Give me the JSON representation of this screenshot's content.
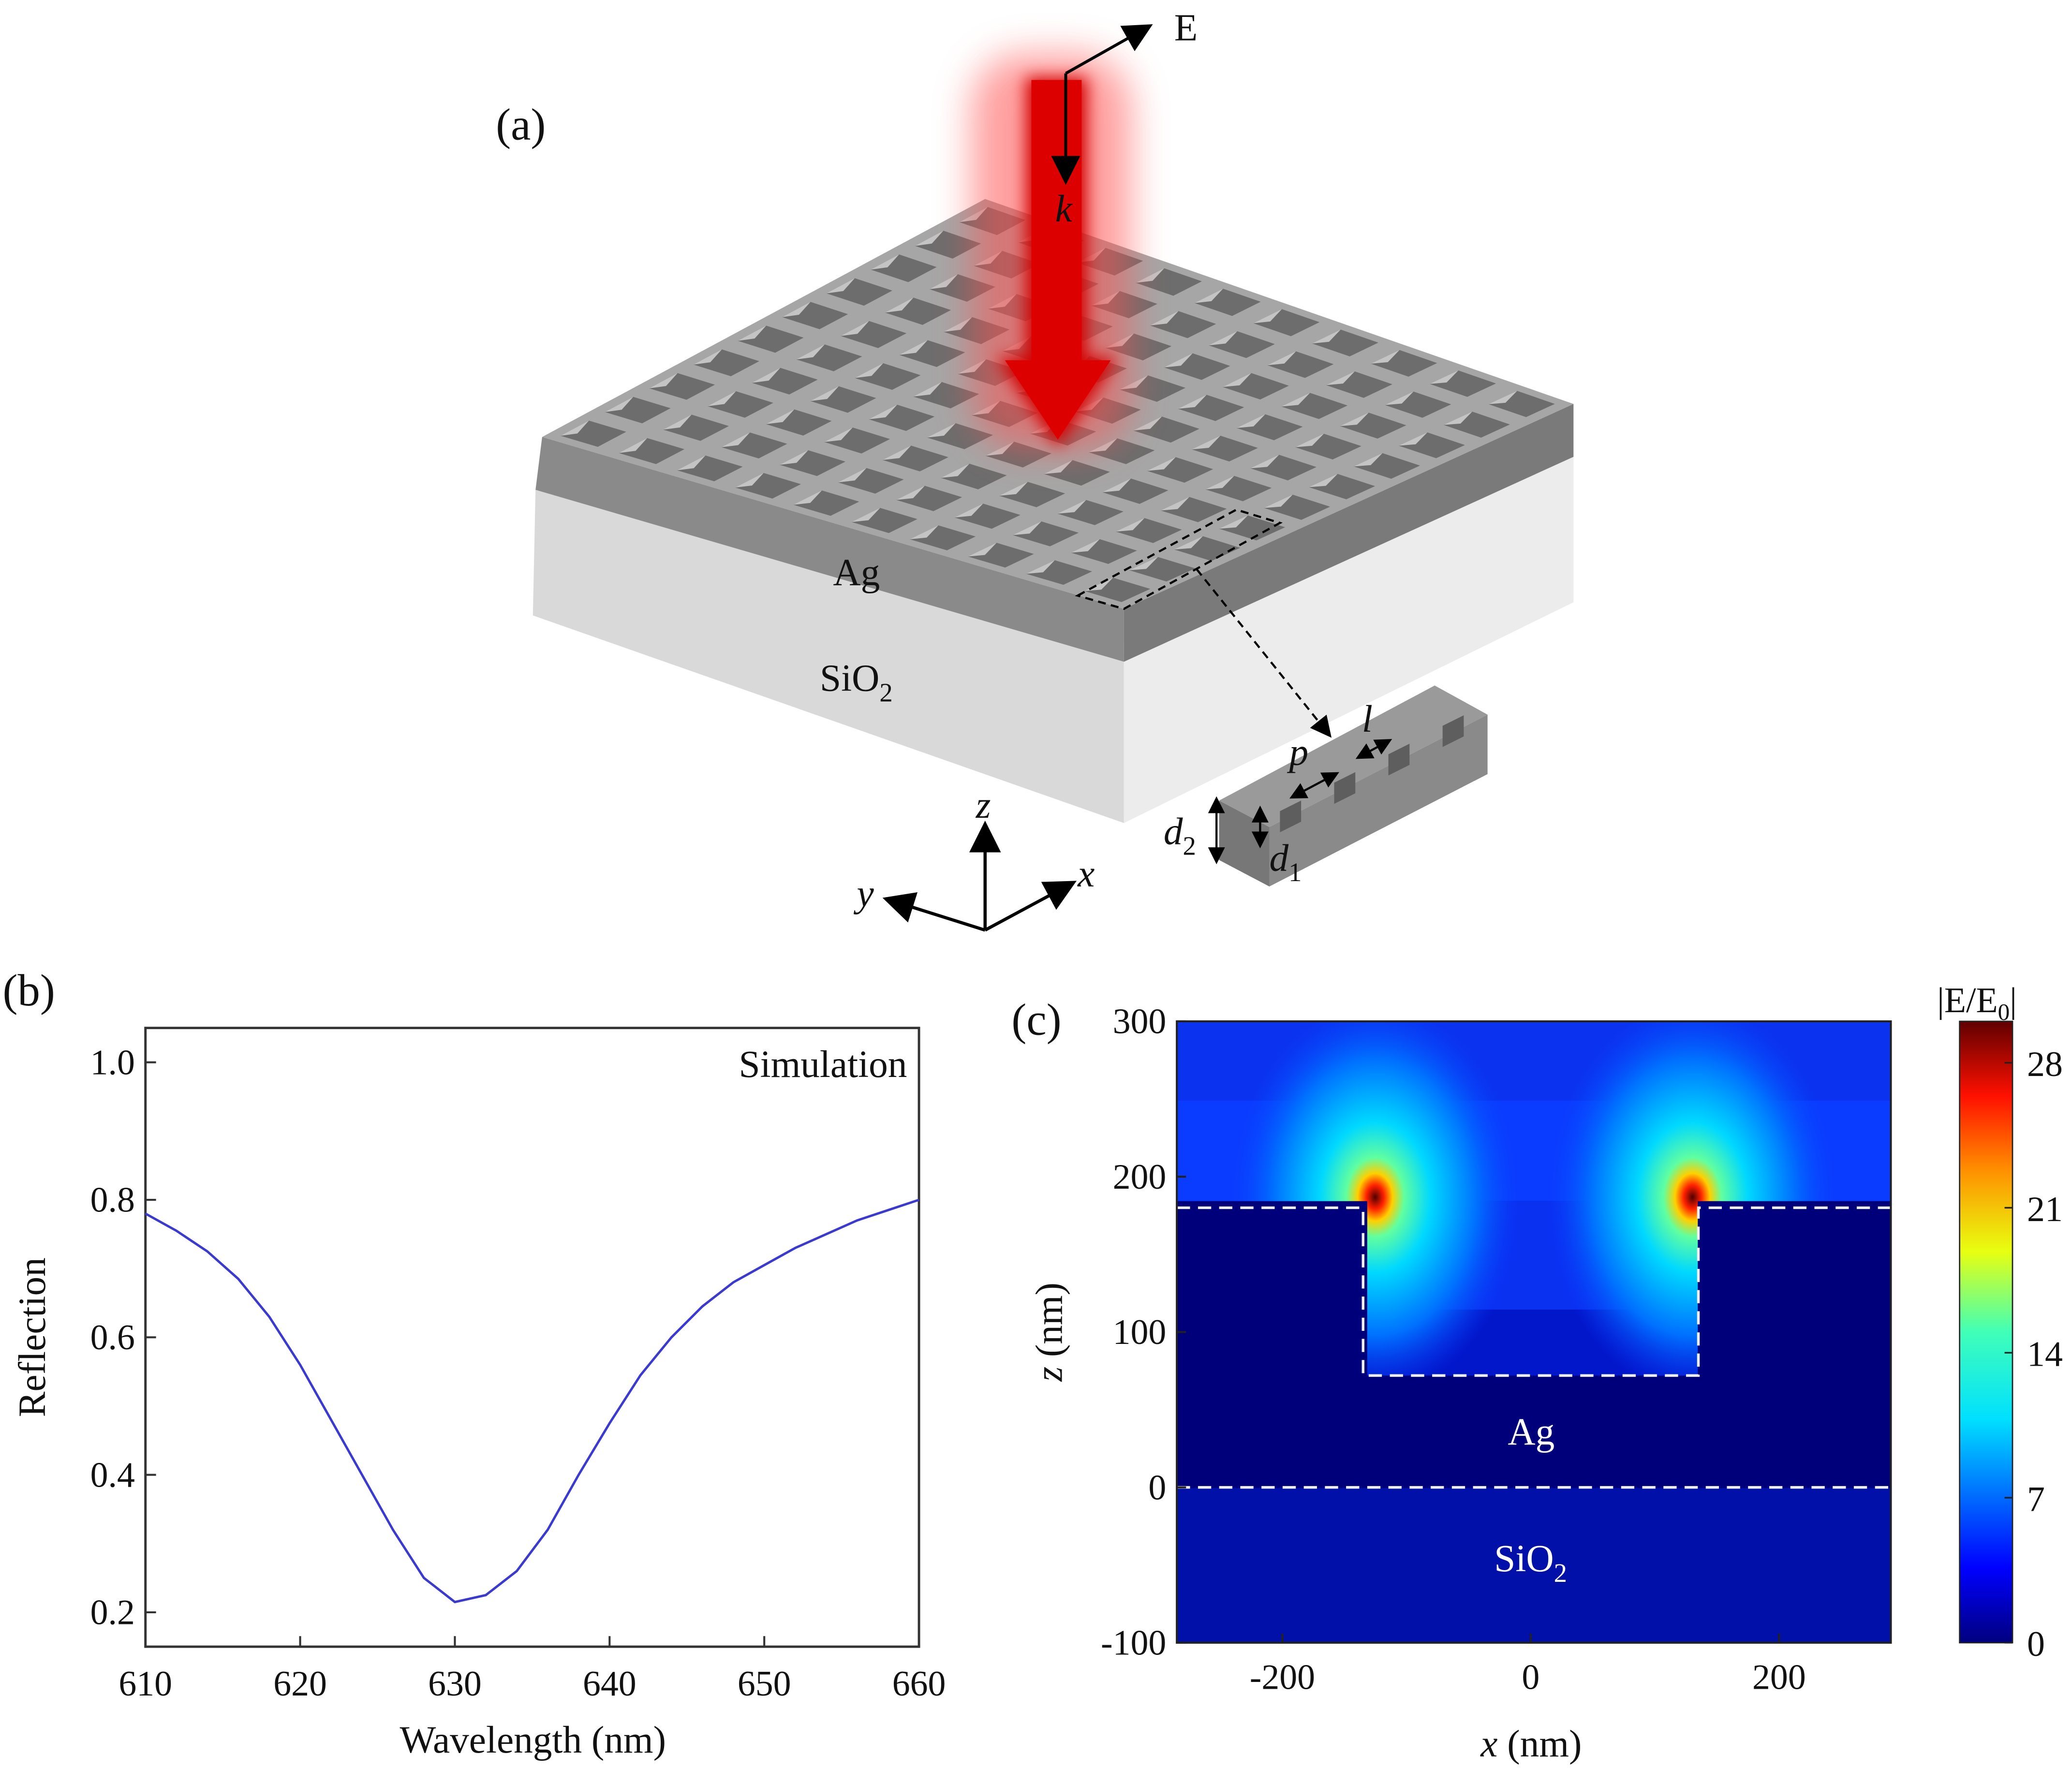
{
  "panel_a": {
    "label": "(a)",
    "field_label": "E",
    "wavevector_label": "k",
    "layer_top": "Ag",
    "layer_bottom": "SiO",
    "layer_bottom_sub": "2",
    "inset_labels": {
      "period": "p",
      "length": "l",
      "d2": "d",
      "d2_sub": "2",
      "d1": "d",
      "d1_sub": "1"
    },
    "axes": {
      "z": "z",
      "y": "y",
      "x": "x"
    },
    "hole_grid": [
      10,
      10
    ],
    "colors": {
      "metal": "#8e8e8e",
      "substrate": "#e4e4e4",
      "beam": "#d40000"
    }
  },
  "chart_data": [
    {
      "panel_label": "(b)",
      "type": "line",
      "annotation": "Simulation",
      "xlabel": "Wavelength (nm)",
      "ylabel": "Reflection",
      "xlim": [
        610,
        660
      ],
      "ylim": [
        0.15,
        1.05
      ],
      "xticks": [
        "610",
        "620",
        "630",
        "640",
        "650",
        "660"
      ],
      "yticks": [
        "0.2",
        "0.4",
        "0.6",
        "0.8",
        "1.0"
      ],
      "grid": false,
      "color": "#3a3ad0",
      "x": [
        610,
        612,
        614,
        616,
        618,
        620,
        622,
        624,
        626,
        628,
        630,
        632,
        634,
        636,
        638,
        640,
        642,
        644,
        646,
        648,
        650,
        652,
        654,
        656,
        658,
        660
      ],
      "y": [
        0.78,
        0.755,
        0.725,
        0.685,
        0.63,
        0.56,
        0.48,
        0.4,
        0.32,
        0.25,
        0.215,
        0.225,
        0.26,
        0.32,
        0.4,
        0.475,
        0.545,
        0.6,
        0.645,
        0.68,
        0.705,
        0.73,
        0.75,
        0.77,
        0.785,
        0.8
      ]
    },
    {
      "panel_label": "(c)",
      "type": "heatmap",
      "xlabel_var": "x",
      "xlabel_unit": " (nm)",
      "ylabel_var": "z",
      "ylabel_unit": " (nm)",
      "xlim": [
        -285,
        290
      ],
      "ylim": [
        -100,
        300
      ],
      "xticks": [
        "-200",
        "0",
        "200"
      ],
      "yticks": [
        "-100",
        "0",
        "100",
        "200",
        "300"
      ],
      "colorbar_title": "|E/E",
      "colorbar_title_sub": "0",
      "colorbar_title_end": "|",
      "colorbar_range": [
        0,
        30
      ],
      "colorbar_ticks": [
        "0",
        "7",
        "14",
        "21",
        "28"
      ],
      "region_labels": {
        "metal": "Ag",
        "substrate": "SiO",
        "substrate_sub": "2"
      },
      "groove": {
        "x_left": -135,
        "x_right": 135,
        "z_top": 180,
        "z_bottom": 72
      },
      "interface_z": 0,
      "hotspots_x": [
        -128,
        128
      ],
      "hotspot_z": 182,
      "colormap": "jet"
    }
  ]
}
